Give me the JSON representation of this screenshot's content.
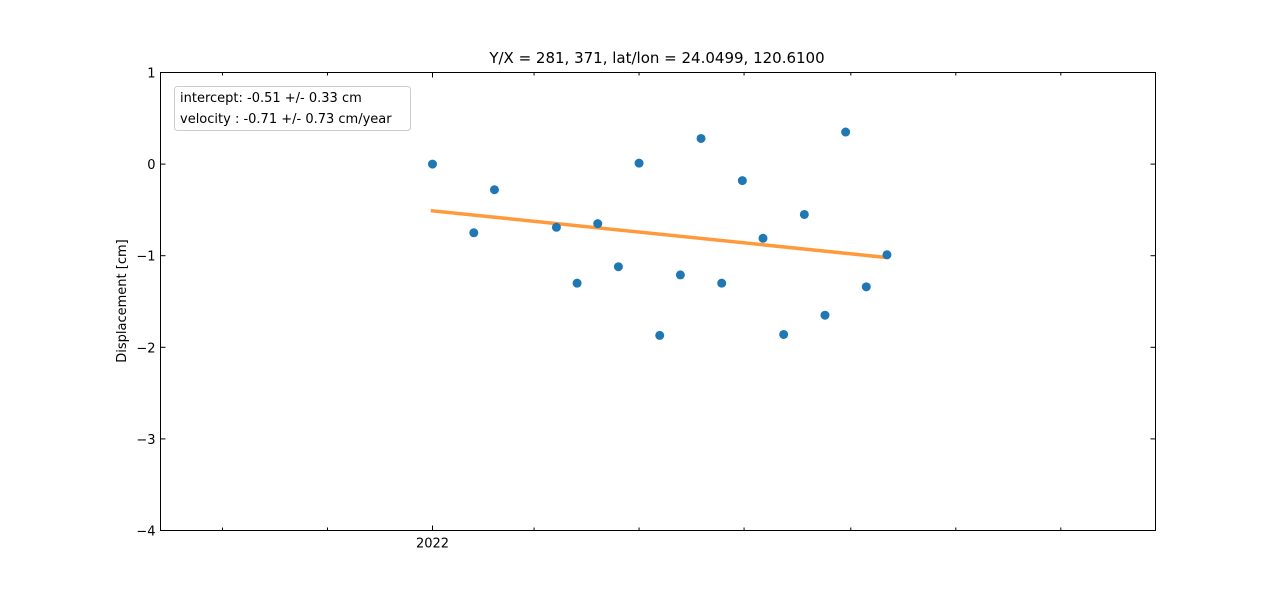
{
  "chart_data": {
    "type": "scatter",
    "title": "Y/X = 281, 371, lat/lon = 24.0499, 120.6100",
    "xlabel": "",
    "ylabel": "Displacement [cm]",
    "xlim": [
      "2021-07-27",
      "2023-02-25"
    ],
    "ylim": [
      -4,
      1
    ],
    "x_tick_labels": [
      {
        "date": "2022-01-01",
        "label": "2022"
      }
    ],
    "x_minor_tick_dates": [
      "2021-09-01",
      "2021-11-01",
      "2022-03-01",
      "2022-05-01",
      "2022-07-01",
      "2022-09-01",
      "2022-11-01",
      "2023-01-01"
    ],
    "y_ticks": [
      1,
      0,
      -1,
      -2,
      -3,
      -4
    ],
    "y_tick_labels": [
      "1",
      "0",
      "−1",
      "−2",
      "−3",
      "−4"
    ],
    "grid": false,
    "legend_position": "top-left",
    "legend": [
      "intercept: -0.51 +/- 0.33 cm",
      "velocity : -0.71 +/- 0.73 cm/year"
    ],
    "points": {
      "color": "#1f77b4",
      "dates": [
        "2022-01-01",
        "2022-01-25",
        "2022-02-06",
        "2022-03-14",
        "2022-03-26",
        "2022-04-07",
        "2022-04-19",
        "2022-05-01",
        "2022-05-13",
        "2022-05-25",
        "2022-06-06",
        "2022-06-18",
        "2022-06-30",
        "2022-07-12",
        "2022-07-24",
        "2022-08-05",
        "2022-08-17",
        "2022-08-29",
        "2022-09-10",
        "2022-09-22"
      ],
      "values": [
        0.0,
        -0.75,
        -0.28,
        -0.69,
        -1.3,
        -0.65,
        -1.12,
        0.01,
        -1.87,
        -1.21,
        0.28,
        -1.3,
        -0.18,
        -0.81,
        -1.86,
        -0.55,
        -1.65,
        0.35,
        -1.34,
        -0.99
      ]
    },
    "fit_line": {
      "color": "#ff9a3c",
      "x": [
        "2022-01-01",
        "2022-09-22"
      ],
      "y": [
        -0.51,
        -1.02
      ]
    }
  }
}
